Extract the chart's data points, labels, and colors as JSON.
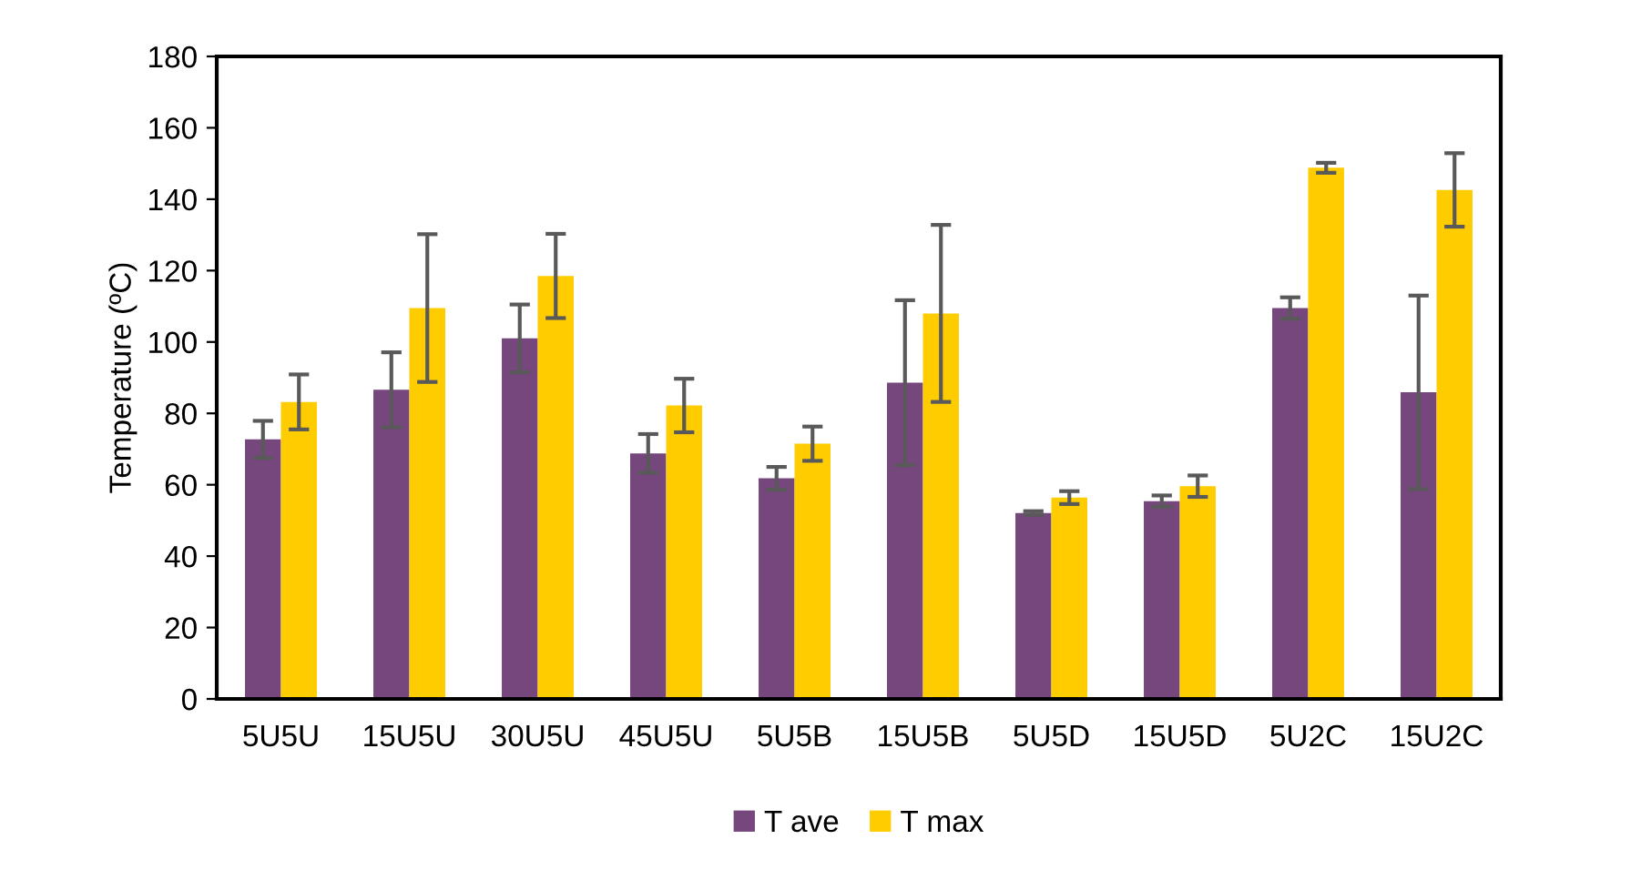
{
  "chart_data": {
    "type": "bar",
    "ylabel": "Temperature (ºC)",
    "categories": [
      "5U5U",
      "15U5U",
      "30U5U",
      "45U5U",
      "5U5B",
      "15U5B",
      "5U5D",
      "15U5D",
      "5U2C",
      "15U2C"
    ],
    "series": [
      {
        "name": "T ave",
        "color": "#76477d",
        "values": [
          72.7,
          86.6,
          101,
          68.8,
          61.8,
          88.6,
          52.1,
          55.4,
          109.5,
          85.9
        ],
        "errors": [
          5.2,
          10.5,
          9.5,
          5.4,
          3.2,
          23.1,
          0.5,
          1.6,
          3,
          27.1
        ]
      },
      {
        "name": "T max",
        "color": "#ffcc00",
        "values": [
          83.2,
          109.5,
          118.5,
          82.2,
          71.5,
          108,
          56.4,
          59.6,
          148.8,
          142.6
        ],
        "errors": [
          7.7,
          20.7,
          11.8,
          7.5,
          4.8,
          24.8,
          1.8,
          3,
          1.4,
          10.3
        ]
      }
    ],
    "ylim": [
      0,
      180
    ],
    "yticks": [
      0,
      20,
      40,
      60,
      80,
      100,
      120,
      140,
      160,
      180
    ],
    "grid": false,
    "legend": "bottom"
  }
}
